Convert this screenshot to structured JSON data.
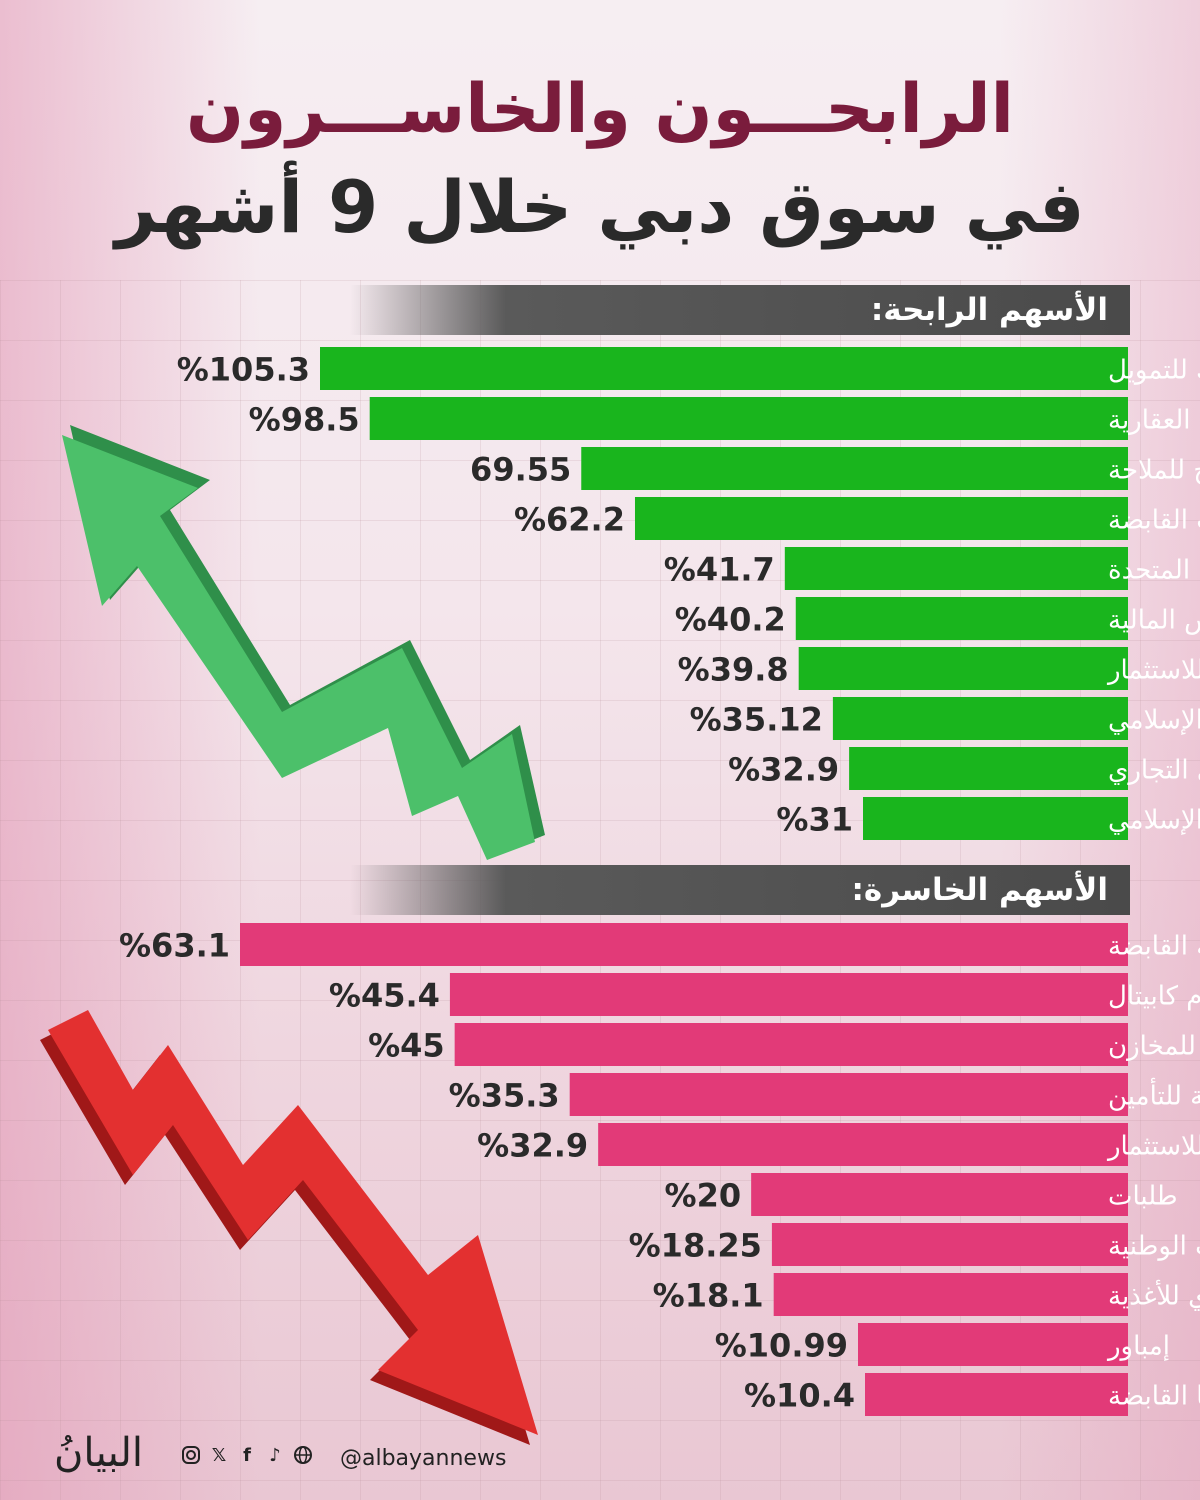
{
  "title_line1": "الرابحـــون والخاســـرون",
  "title_line2": "في سوق دبي خلال 9 أشهر",
  "footer": {
    "logo": "البيانُ",
    "handle": "@albayannews",
    "icons": [
      "instagram-icon",
      "x-icon",
      "facebook-icon",
      "tiktok-icon",
      "globe-icon"
    ]
  },
  "colors": {
    "gainers_bar": "#19b51d",
    "losers_bar": "#e23a78",
    "header_bar": "#4a4a4a"
  },
  "chart_data": [
    {
      "type": "bar",
      "orientation": "horizontal",
      "title": "الأسهم الرابحة:",
      "categories": [
        "أملاك للتمويل",
        "الاتحاد العقارية",
        "الخليج للملاحة",
        "اكتتاب القابضة",
        "الأغذية المتحدة",
        "جي إف إتش المالية",
        "دبي للاستثمار",
        "دبي الإسلامي",
        "دبي التجاري",
        "الإمارات الإسلامي"
      ],
      "values": [
        105.3,
        98.5,
        69.55,
        62.2,
        41.7,
        40.2,
        39.8,
        35.12,
        32.9,
        31
      ],
      "labels": [
        "%105.3",
        "%98.5",
        "69.55",
        "%62.2",
        "%41.7",
        "%40.2",
        "%39.8",
        "%35.12",
        "%32.9",
        "%31"
      ],
      "grid": false
    },
    {
      "type": "bar",
      "orientation": "horizontal",
      "title": "الأسهم الخاسرة:",
      "categories": [
        "الوطنية الدولية القابضة",
        "بي إتش إم كابيتال",
        "أجيليتي للمخازن",
        "دبي الوطنية للتأمين",
        "الإمارات للاستثمار",
        "طلبات",
        "الصناعات الوطنية",
        "يونيكاي للأغذية",
        "إمباور",
        "المزايا القابضة"
      ],
      "values": [
        63.1,
        45.4,
        45,
        35.3,
        32.9,
        20,
        18.25,
        18.1,
        10.99,
        10.4
      ],
      "labels": [
        "%63.1",
        "%45.4",
        "%45",
        "%35.3",
        "%32.9",
        "%20",
        "%18.25",
        "%18.1",
        "%10.99",
        "%10.4"
      ],
      "grid": false
    }
  ]
}
